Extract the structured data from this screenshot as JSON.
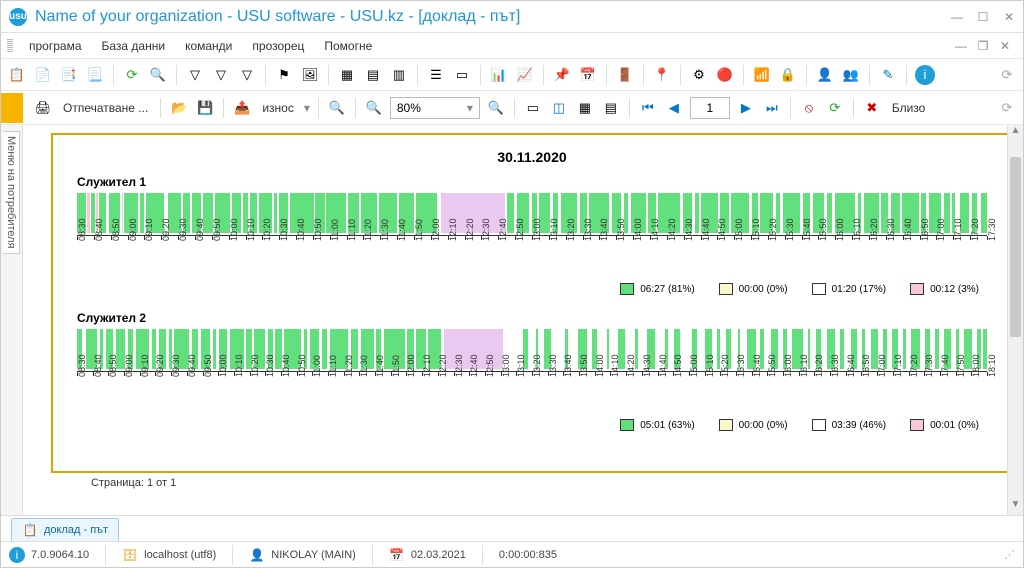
{
  "window": {
    "title": "Name of your organization - USU software - USU.kz - [доклад - път]",
    "icon_letter": "usu"
  },
  "menu": {
    "items": [
      "програма",
      "База данни",
      "команди",
      "прозорец",
      "Помогне"
    ]
  },
  "toolbar2": {
    "print_label": "Отпечатване ...",
    "export_label": "износ",
    "zoom_value": "80%",
    "page_value": "1",
    "close_label": "Близо"
  },
  "sidetab": {
    "label": "Меню на потребителя"
  },
  "report": {
    "date_title": "30.11.2020",
    "page_footer": "Страница: 1 от 1",
    "colors": {
      "green": "#63e07e",
      "yellow": "#fbf9cc",
      "white": "#ffffff",
      "pink": "#f7c8d6",
      "violet_block": "#e9c9ef"
    },
    "employees": [
      {
        "name": "Служител 1",
        "axis_start": "08:30",
        "axis_end": "17:30",
        "axis_step_min": 10,
        "legend": [
          {
            "color": "green",
            "label": "06:27 (81%)"
          },
          {
            "color": "yellow",
            "label": "00:00 (0%)"
          },
          {
            "color": "white",
            "label": "01:20 (17%)"
          },
          {
            "color": "pink",
            "label": "00:12 (3%)"
          }
        ],
        "segments": [
          {
            "s": 0,
            "w": 1.0,
            "c": "green"
          },
          {
            "s": 1.1,
            "w": 0.3,
            "c": "pink"
          },
          {
            "s": 1.5,
            "w": 0.5,
            "c": "green"
          },
          {
            "s": 2.1,
            "w": 0.2,
            "c": "pink"
          },
          {
            "s": 2.4,
            "w": 0.8,
            "c": "green"
          },
          {
            "s": 3.5,
            "w": 1.2,
            "c": "green"
          },
          {
            "s": 4.9,
            "w": 0.2,
            "c": "pink"
          },
          {
            "s": 5.2,
            "w": 1.5,
            "c": "green"
          },
          {
            "s": 6.9,
            "w": 0.5,
            "c": "green"
          },
          {
            "s": 7.6,
            "w": 2.0,
            "c": "green"
          },
          {
            "s": 10.0,
            "w": 1.4,
            "c": "green"
          },
          {
            "s": 11.6,
            "w": 0.8,
            "c": "green"
          },
          {
            "s": 12.6,
            "w": 1.0,
            "c": "green"
          },
          {
            "s": 13.8,
            "w": 1.2,
            "c": "green"
          },
          {
            "s": 15.2,
            "w": 1.6,
            "c": "green"
          },
          {
            "s": 17.0,
            "w": 1.0,
            "c": "green"
          },
          {
            "s": 18.2,
            "w": 0.6,
            "c": "green"
          },
          {
            "s": 19.0,
            "w": 0.8,
            "c": "green"
          },
          {
            "s": 20.0,
            "w": 1.4,
            "c": "green"
          },
          {
            "s": 21.6,
            "w": 0.4,
            "c": "green"
          },
          {
            "s": 22.2,
            "w": 1.0,
            "c": "green"
          },
          {
            "s": 23.4,
            "w": 2.6,
            "c": "green"
          },
          {
            "s": 26.2,
            "w": 1.0,
            "c": "green"
          },
          {
            "s": 27.4,
            "w": 2.2,
            "c": "green"
          },
          {
            "s": 29.8,
            "w": 1.2,
            "c": "green"
          },
          {
            "s": 31.2,
            "w": 1.8,
            "c": "green"
          },
          {
            "s": 33.2,
            "w": 2.0,
            "c": "green"
          },
          {
            "s": 35.4,
            "w": 1.6,
            "c": "green"
          },
          {
            "s": 37.2,
            "w": 2.4,
            "c": "green"
          },
          {
            "s": 40.0,
            "w": 7.0,
            "c": "violet_block"
          },
          {
            "s": 47.2,
            "w": 0.8,
            "c": "green"
          },
          {
            "s": 48.3,
            "w": 1.4,
            "c": "green"
          },
          {
            "s": 50.0,
            "w": 0.5,
            "c": "green"
          },
          {
            "s": 50.8,
            "w": 1.2,
            "c": "green"
          },
          {
            "s": 52.3,
            "w": 0.6,
            "c": "green"
          },
          {
            "s": 53.2,
            "w": 1.8,
            "c": "green"
          },
          {
            "s": 55.3,
            "w": 0.7,
            "c": "green"
          },
          {
            "s": 56.3,
            "w": 2.2,
            "c": "green"
          },
          {
            "s": 58.8,
            "w": 1.0,
            "c": "green"
          },
          {
            "s": 60.1,
            "w": 0.5,
            "c": "green"
          },
          {
            "s": 60.9,
            "w": 1.6,
            "c": "green"
          },
          {
            "s": 62.8,
            "w": 0.8,
            "c": "green"
          },
          {
            "s": 63.9,
            "w": 2.4,
            "c": "green"
          },
          {
            "s": 66.6,
            "w": 1.0,
            "c": "green"
          },
          {
            "s": 67.9,
            "w": 0.4,
            "c": "green"
          },
          {
            "s": 68.6,
            "w": 1.8,
            "c": "green"
          },
          {
            "s": 70.7,
            "w": 0.9,
            "c": "green"
          },
          {
            "s": 71.9,
            "w": 2.0,
            "c": "green"
          },
          {
            "s": 74.2,
            "w": 0.6,
            "c": "green"
          },
          {
            "s": 75.1,
            "w": 1.4,
            "c": "green"
          },
          {
            "s": 76.8,
            "w": 0.5,
            "c": "green"
          },
          {
            "s": 77.6,
            "w": 1.9,
            "c": "green"
          },
          {
            "s": 79.8,
            "w": 0.8,
            "c": "green"
          },
          {
            "s": 80.9,
            "w": 1.2,
            "c": "green"
          },
          {
            "s": 82.4,
            "w": 0.6,
            "c": "green"
          },
          {
            "s": 83.3,
            "w": 2.2,
            "c": "green"
          },
          {
            "s": 85.8,
            "w": 0.4,
            "c": "green"
          },
          {
            "s": 86.5,
            "w": 1.6,
            "c": "green"
          },
          {
            "s": 88.4,
            "w": 0.7,
            "c": "green"
          },
          {
            "s": 89.4,
            "w": 1.0,
            "c": "green"
          },
          {
            "s": 90.7,
            "w": 1.8,
            "c": "green"
          },
          {
            "s": 92.8,
            "w": 0.5,
            "c": "green"
          },
          {
            "s": 93.6,
            "w": 1.4,
            "c": "green"
          },
          {
            "s": 95.3,
            "w": 0.6,
            "c": "green"
          },
          {
            "s": 96.2,
            "w": 0.3,
            "c": "green"
          },
          {
            "s": 97.0,
            "w": 1.0,
            "c": "green"
          },
          {
            "s": 98.4,
            "w": 0.5,
            "c": "green"
          },
          {
            "s": 99.3,
            "w": 0.7,
            "c": "green"
          }
        ]
      },
      {
        "name": "Служител 2",
        "axis_start": "08:30",
        "axis_end": "18:10",
        "axis_step_min": 10,
        "legend": [
          {
            "color": "green",
            "label": "05:01 (63%)"
          },
          {
            "color": "yellow",
            "label": "00:00 (0%)"
          },
          {
            "color": "white",
            "label": "03:39 (46%)"
          },
          {
            "color": "pink",
            "label": "00:01 (0%)"
          }
        ],
        "segments": [
          {
            "s": 0,
            "w": 0.5,
            "c": "green"
          },
          {
            "s": 1.0,
            "w": 1.2,
            "c": "green"
          },
          {
            "s": 2.5,
            "w": 0.4,
            "c": "green"
          },
          {
            "s": 3.2,
            "w": 0.8,
            "c": "green"
          },
          {
            "s": 4.3,
            "w": 1.0,
            "c": "green"
          },
          {
            "s": 5.6,
            "w": 0.6,
            "c": "green"
          },
          {
            "s": 6.5,
            "w": 1.4,
            "c": "green"
          },
          {
            "s": 8.2,
            "w": 0.5,
            "c": "green"
          },
          {
            "s": 9.0,
            "w": 0.8,
            "c": "green"
          },
          {
            "s": 10.1,
            "w": 0.3,
            "c": "green"
          },
          {
            "s": 10.7,
            "w": 1.6,
            "c": "green"
          },
          {
            "s": 12.6,
            "w": 0.7,
            "c": "green"
          },
          {
            "s": 13.6,
            "w": 1.0,
            "c": "green"
          },
          {
            "s": 14.9,
            "w": 0.4,
            "c": "green"
          },
          {
            "s": 15.6,
            "w": 0.9,
            "c": "green"
          },
          {
            "s": 16.8,
            "w": 1.5,
            "c": "green"
          },
          {
            "s": 18.6,
            "w": 0.6,
            "c": "green"
          },
          {
            "s": 19.5,
            "w": 1.2,
            "c": "green"
          },
          {
            "s": 21.0,
            "w": 0.5,
            "c": "green"
          },
          {
            "s": 21.8,
            "w": 0.7,
            "c": "green"
          },
          {
            "s": 22.8,
            "w": 1.8,
            "c": "green"
          },
          {
            "s": 24.9,
            "w": 0.4,
            "c": "green"
          },
          {
            "s": 25.6,
            "w": 1.0,
            "c": "green"
          },
          {
            "s": 26.9,
            "w": 0.6,
            "c": "green"
          },
          {
            "s": 27.8,
            "w": 2.0,
            "c": "green"
          },
          {
            "s": 30.1,
            "w": 0.8,
            "c": "green"
          },
          {
            "s": 31.2,
            "w": 1.4,
            "c": "green"
          },
          {
            "s": 32.9,
            "w": 0.5,
            "c": "green"
          },
          {
            "s": 33.7,
            "w": 2.3,
            "c": "green"
          },
          {
            "s": 36.3,
            "w": 0.7,
            "c": "green"
          },
          {
            "s": 37.3,
            "w": 1.0,
            "c": "green"
          },
          {
            "s": 38.6,
            "w": 1.4,
            "c": "green"
          },
          {
            "s": 40.3,
            "w": 6.5,
            "c": "violet_block"
          },
          {
            "s": 49.0,
            "w": 0.6,
            "c": "green"
          },
          {
            "s": 50.4,
            "w": 0.3,
            "c": "green"
          },
          {
            "s": 51.3,
            "w": 0.8,
            "c": "green"
          },
          {
            "s": 53.6,
            "w": 0.4,
            "c": "green"
          },
          {
            "s": 55.0,
            "w": 1.0,
            "c": "green"
          },
          {
            "s": 56.6,
            "w": 0.5,
            "c": "green"
          },
          {
            "s": 58.2,
            "w": 0.3,
            "c": "green"
          },
          {
            "s": 59.4,
            "w": 0.8,
            "c": "green"
          },
          {
            "s": 61.3,
            "w": 0.4,
            "c": "green"
          },
          {
            "s": 62.6,
            "w": 0.9,
            "c": "green"
          },
          {
            "s": 64.6,
            "w": 0.3,
            "c": "green"
          },
          {
            "s": 65.6,
            "w": 0.7,
            "c": "green"
          },
          {
            "s": 67.6,
            "w": 0.5,
            "c": "green"
          },
          {
            "s": 69.0,
            "w": 0.8,
            "c": "green"
          },
          {
            "s": 70.3,
            "w": 0.4,
            "c": "green"
          },
          {
            "s": 71.3,
            "w": 0.6,
            "c": "green"
          },
          {
            "s": 72.6,
            "w": 0.3,
            "c": "green"
          },
          {
            "s": 73.6,
            "w": 1.0,
            "c": "green"
          },
          {
            "s": 75.0,
            "w": 0.5,
            "c": "green"
          },
          {
            "s": 76.3,
            "w": 0.7,
            "c": "green"
          },
          {
            "s": 77.6,
            "w": 0.4,
            "c": "green"
          },
          {
            "s": 78.6,
            "w": 1.2,
            "c": "green"
          },
          {
            "s": 80.3,
            "w": 0.3,
            "c": "green"
          },
          {
            "s": 81.2,
            "w": 0.6,
            "c": "green"
          },
          {
            "s": 82.4,
            "w": 0.9,
            "c": "green"
          },
          {
            "s": 83.9,
            "w": 0.4,
            "c": "green"
          },
          {
            "s": 85.0,
            "w": 0.7,
            "c": "green"
          },
          {
            "s": 86.3,
            "w": 0.3,
            "c": "green"
          },
          {
            "s": 87.2,
            "w": 0.8,
            "c": "green"
          },
          {
            "s": 88.6,
            "w": 0.4,
            "c": "green"
          },
          {
            "s": 89.6,
            "w": 0.6,
            "c": "green"
          },
          {
            "s": 90.8,
            "w": 0.3,
            "c": "green"
          },
          {
            "s": 91.7,
            "w": 0.9,
            "c": "green"
          },
          {
            "s": 93.2,
            "w": 0.5,
            "c": "green"
          },
          {
            "s": 94.3,
            "w": 0.4,
            "c": "green"
          },
          {
            "s": 95.3,
            "w": 0.7,
            "c": "green"
          },
          {
            "s": 96.6,
            "w": 0.3,
            "c": "green"
          },
          {
            "s": 97.5,
            "w": 0.8,
            "c": "green"
          },
          {
            "s": 98.9,
            "w": 0.4,
            "c": "green"
          },
          {
            "s": 99.6,
            "w": 0.4,
            "c": "green"
          }
        ]
      }
    ]
  },
  "doctab": {
    "label": "доклад - път"
  },
  "status": {
    "version": "7.0.9064.10",
    "db": "localhost (utf8)",
    "user": "NIKOLAY (MAIN)",
    "date": "02.03.2021",
    "timer": "0:00:00:835"
  }
}
